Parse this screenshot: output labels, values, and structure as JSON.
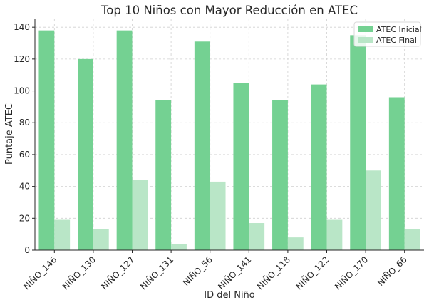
{
  "chart_data": {
    "type": "bar",
    "title": "Top 10 Niños con Mayor Reducción en ATEC",
    "xlabel": "ID del Niño",
    "ylabel": "Puntaje ATEC",
    "ylim": [
      0,
      145
    ],
    "yticks": [
      0,
      20,
      40,
      60,
      80,
      100,
      120,
      140
    ],
    "grid": true,
    "legend_position": "top-right",
    "categories": [
      "NIÑO_146",
      "NIÑO_130",
      "NIÑO_127",
      "NIÑO_131",
      "NIÑO_56",
      "NIÑO_141",
      "NIÑO_118",
      "NIÑO_122",
      "NIÑO_170",
      "NIÑO_66"
    ],
    "series": [
      {
        "name": "ATEC Inicial",
        "color": "#74d192",
        "values": [
          138,
          120,
          138,
          94,
          131,
          105,
          94,
          104,
          135,
          96
        ]
      },
      {
        "name": "ATEC Final",
        "color": "#b9e6c7",
        "values": [
          19,
          13,
          44,
          4,
          43,
          17,
          8,
          19,
          50,
          13
        ]
      }
    ]
  }
}
